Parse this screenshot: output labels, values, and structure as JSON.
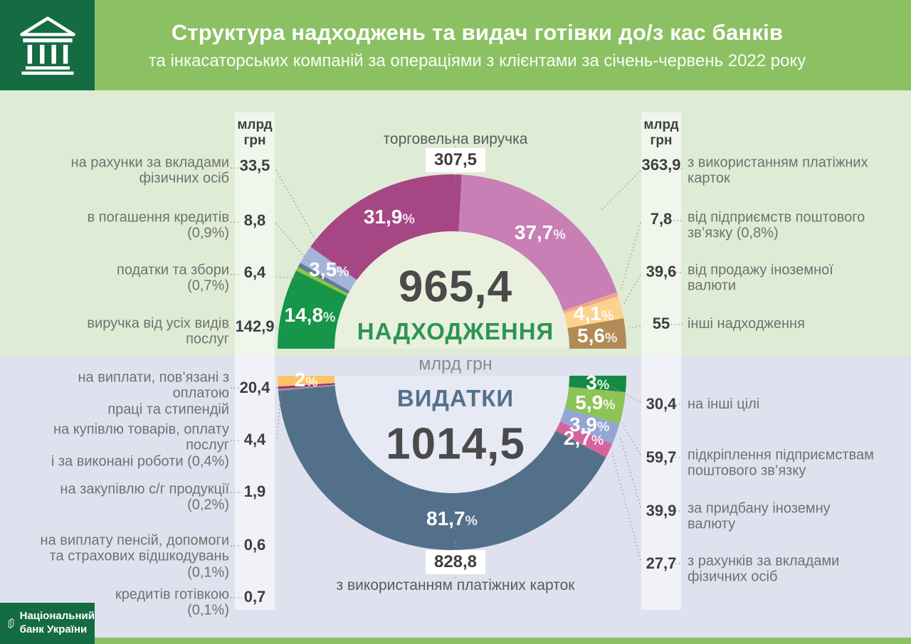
{
  "header": {
    "title": "Структура надходжень та видач готівки до/з кас банків",
    "subtitle": "та інкасаторських компаній за операціями з клієнтами за січень-червень 2022 року"
  },
  "org": {
    "name_line1": "Національний",
    "name_line2": "банк України"
  },
  "col_header": "млрд\nгрн",
  "center_units": "млрд грн",
  "percent_sign": "%",
  "receipts": {
    "total": "965,4",
    "title": "НАДХОДЖЕННЯ",
    "callout": {
      "label": "торговельна виручка",
      "value": "307,5"
    },
    "left_items": [
      {
        "label": "на рахунки за вкладами\nфізичних осіб",
        "value": "33,5"
      },
      {
        "label": "в погашення кредитів\n(0,9%)",
        "value": "8,8"
      },
      {
        "label": "податки та збори\n(0,7%)",
        "value": "6,4"
      },
      {
        "label": "виручка від усіх видів\nпослуг",
        "value": "142,9"
      }
    ],
    "right_items": [
      {
        "label": "з використанням платіжних\nкарток",
        "value": "363,9"
      },
      {
        "label": "від підприємств поштового\nзв’язку (0,8%)",
        "value": "7,8"
      },
      {
        "label": "від продажу іноземної\nвалюти",
        "value": "39,6"
      },
      {
        "label": "інші надходження",
        "value": "55"
      }
    ]
  },
  "expenditures": {
    "total": "1014,5",
    "title": "ВИДАТКИ",
    "callout": {
      "label": "з використанням платіжних карток",
      "value": "828,8"
    },
    "left_items": [
      {
        "label": "на виплати, пов’язані з оплатою\nпраці та стипендій",
        "value": "20,4"
      },
      {
        "label": "на купівлю товарів, оплату послуг\nі за виконані роботи (0,4%)",
        "value": "4,4"
      },
      {
        "label": "на закупівлю с/г продукції\n(0,2%)",
        "value": "1,9"
      },
      {
        "label": "на виплату пенсій, допомоги\nта страхових відшкодувань\n(0,1%)",
        "value": "0,6"
      },
      {
        "label": "кредитів готівкою\n(0,1%)",
        "value": "0,7"
      }
    ],
    "right_items": [
      {
        "label": "на інші цілі",
        "value": "30,4"
      },
      {
        "label": "підкріплення підприємствам\nпоштового зв’язку",
        "value": "59,7"
      },
      {
        "label": "за придбану іноземну\nвалюту",
        "value": "39,9"
      },
      {
        "label": "з рахунків за вкладами\nфізичних осіб",
        "value": "27,7"
      }
    ]
  },
  "chart_data": [
    {
      "type": "donut-semicircle-top",
      "title": "НАДХОДЖЕННЯ",
      "total": 965.4,
      "units": "млрд грн",
      "segments": [
        {
          "label": "виручка від усіх видів послуг",
          "value": 142.9,
          "pct": 14.8,
          "color": "#17954b",
          "pct_label": "14,8"
        },
        {
          "label": "податки та збори",
          "value": 6.4,
          "pct": 0.7,
          "color": "#8fc63e"
        },
        {
          "label": "в погашення кредитів",
          "value": 8.8,
          "pct": 0.9,
          "color": "#5e7d98"
        },
        {
          "label": "на рахунки за вкладами фізичних осіб",
          "value": 33.5,
          "pct": 3.5,
          "color": "#a7b4d9",
          "pct_label": "3,5"
        },
        {
          "label": "торговельна виручка",
          "value": 307.5,
          "pct": 31.9,
          "color": "#a64685",
          "pct_label": "31,9"
        },
        {
          "label": "з використанням платіжних карток",
          "value": 363.9,
          "pct": 37.7,
          "color": "#c77fb6",
          "pct_label": "37,7"
        },
        {
          "label": "від підприємств поштового зв’язку",
          "value": 7.8,
          "pct": 0.8,
          "color": "#f1a68c"
        },
        {
          "label": "від продажу іноземної валюти",
          "value": 39.6,
          "pct": 4.1,
          "color": "#fbd38e",
          "pct_label": "4,1"
        },
        {
          "label": "інші надходження",
          "value": 55,
          "pct": 5.6,
          "color": "#b18a55",
          "pct_label": "5,6"
        }
      ]
    },
    {
      "type": "donut-semicircle-bottom",
      "title": "ВИДАТКИ",
      "total": 1014.5,
      "units": "млрд грн",
      "segments": [
        {
          "label": "на виплати, пов’язані з оплатою праці та стипендій",
          "value": 20.4,
          "pct": 2.0,
          "color": "#f9c567",
          "pct_label": "2"
        },
        {
          "label": "на купівлю товарів, оплату послуг і за виконані роботи",
          "value": 4.4,
          "pct": 0.4,
          "color": "#a2266e"
        },
        {
          "label": "на закупівлю с/г продукції",
          "value": 1.9,
          "pct": 0.2,
          "color": "#8a8f94"
        },
        {
          "label": "на виплату пенсій, допомоги та страхових відшкодувань",
          "value": 0.6,
          "pct": 0.1,
          "color": "#c9a2c0"
        },
        {
          "label": "кредитів готівкою",
          "value": 0.7,
          "pct": 0.1,
          "color": "#7f5c4f"
        },
        {
          "label": "з використанням платіжних карток",
          "value": 828.8,
          "pct": 81.7,
          "color": "#53708a",
          "pct_label": "81,7"
        },
        {
          "label": "з рахунків за вкладами фізичних осіб",
          "value": 27.7,
          "pct": 2.7,
          "color": "#d5649e",
          "pct_label": "2,7"
        },
        {
          "label": "за придбану іноземну валюту",
          "value": 39.9,
          "pct": 3.9,
          "color": "#93a5d3",
          "pct_label": "3,9"
        },
        {
          "label": "підкріплення підприємствам поштового зв’язку",
          "value": 59.7,
          "pct": 5.9,
          "color": "#8cc455",
          "pct_label": "5,9"
        },
        {
          "label": "на інші цілі",
          "value": 30.4,
          "pct": 3.0,
          "color": "#158a44",
          "pct_label": "3"
        }
      ]
    }
  ]
}
